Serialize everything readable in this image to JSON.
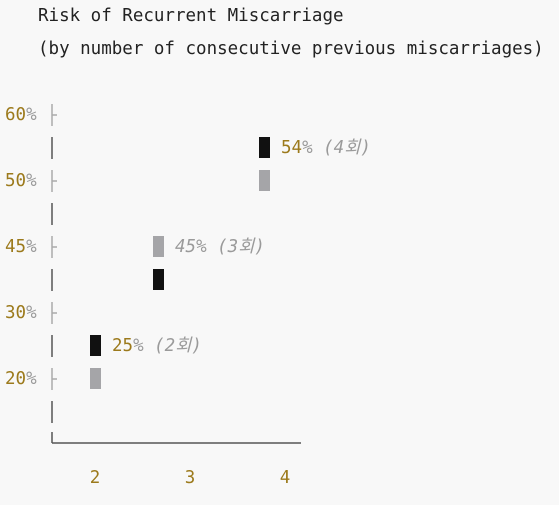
{
  "title": "Risk of Recurrent Miscarriage",
  "subtitle": "(by number of consecutive previous miscarriages)",
  "y_labels": [
    {
      "number": "60",
      "unit": "%"
    },
    {
      "number": "50",
      "unit": "%"
    },
    {
      "number": "45",
      "unit": "%"
    },
    {
      "number": "30",
      "unit": "%"
    },
    {
      "number": "20",
      "unit": "%"
    }
  ],
  "x_labels": [
    "2",
    "3",
    "4"
  ],
  "annotations": [
    {
      "number": "54",
      "rest": "% (4회)"
    },
    {
      "text": "45% (3회)"
    },
    {
      "number": "25",
      "rest": "% (2회)"
    }
  ]
}
